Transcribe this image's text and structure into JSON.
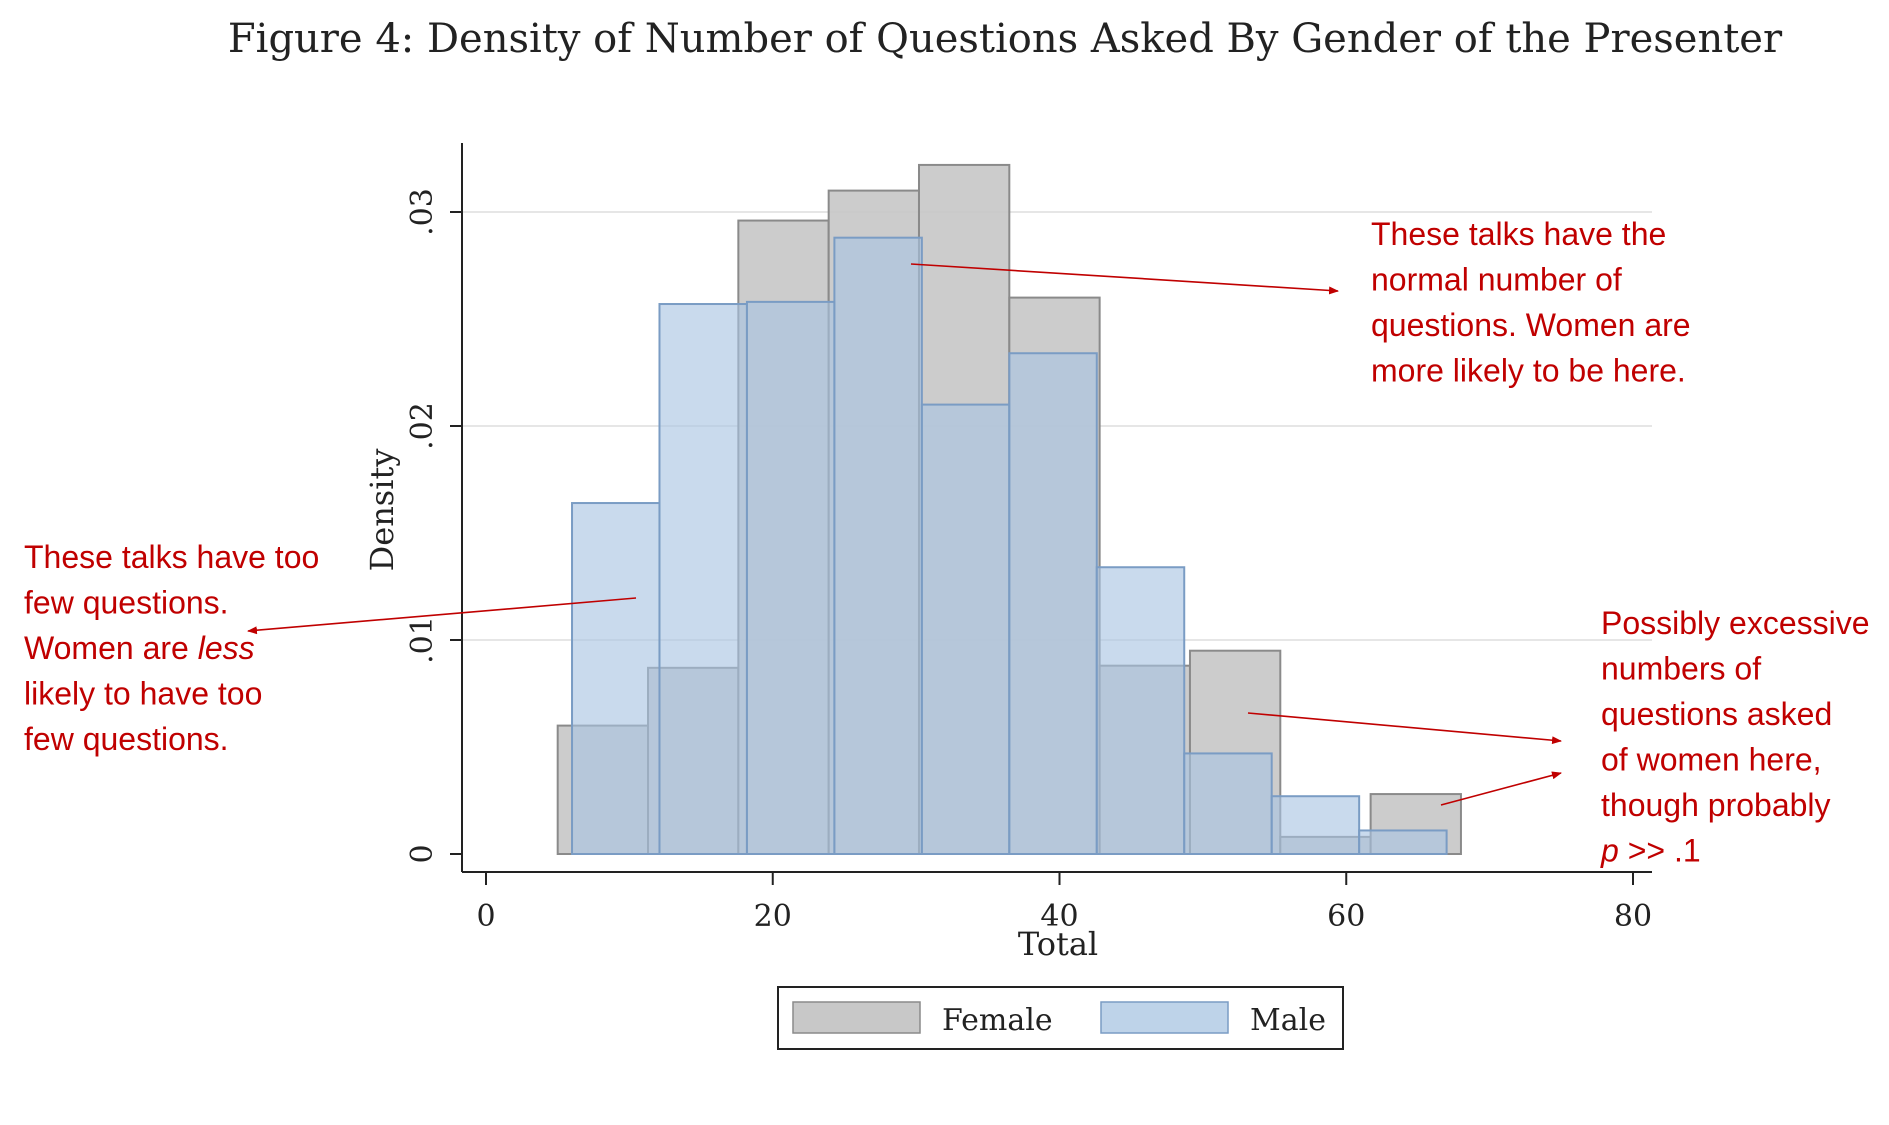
{
  "figure_title": "Figure 4: Density of Number of Questions Asked By Gender of the Presenter",
  "colors": {
    "female_fill": "#c8c8c8",
    "female_stroke": "#8a8a8a",
    "male_fill": "#a8c4e2",
    "male_stroke": "#7a9cc4",
    "annotation": "#c00000",
    "grid": "#e6e6e6",
    "axis": "#222222"
  },
  "chart_data": {
    "type": "bar",
    "subtype": "overlaid-histogram",
    "xlabel": "Total",
    "ylabel": "Density",
    "xlim": [
      0,
      80
    ],
    "ylim": [
      0,
      0.033
    ],
    "x_ticks": [
      0,
      20,
      40,
      60,
      80
    ],
    "x_tick_labels": [
      "0",
      "20",
      "40",
      "60",
      "80"
    ],
    "y_ticks": [
      0,
      0.01,
      0.02,
      0.03
    ],
    "y_tick_labels": [
      "0",
      ".01",
      ".02",
      ".03"
    ],
    "grid": true,
    "legend": {
      "placement": "bottom",
      "entries": [
        "Female",
        "Male"
      ]
    },
    "series": [
      {
        "name": "Female",
        "bins": [
          {
            "x0": 5.0,
            "x1": 11.3,
            "value": 0.006
          },
          {
            "x0": 11.3,
            "x1": 17.6,
            "value": 0.0087
          },
          {
            "x0": 17.6,
            "x1": 23.9,
            "value": 0.0296
          },
          {
            "x0": 23.9,
            "x1": 30.2,
            "value": 0.031
          },
          {
            "x0": 30.2,
            "x1": 36.5,
            "value": 0.0322
          },
          {
            "x0": 36.5,
            "x1": 42.8,
            "value": 0.026
          },
          {
            "x0": 42.8,
            "x1": 49.1,
            "value": 0.0088
          },
          {
            "x0": 49.1,
            "x1": 55.4,
            "value": 0.0095
          },
          {
            "x0": 55.4,
            "x1": 61.7,
            "value": 0.0008
          },
          {
            "x0": 61.7,
            "x1": 68.0,
            "value": 0.0028
          }
        ]
      },
      {
        "name": "Male",
        "bins": [
          {
            "x0": 6.0,
            "x1": 12.1,
            "value": 0.0164
          },
          {
            "x0": 12.1,
            "x1": 18.2,
            "value": 0.0257
          },
          {
            "x0": 18.2,
            "x1": 24.3,
            "value": 0.0258
          },
          {
            "x0": 24.3,
            "x1": 30.4,
            "value": 0.0288
          },
          {
            "x0": 30.4,
            "x1": 36.5,
            "value": 0.021
          },
          {
            "x0": 36.5,
            "x1": 42.6,
            "value": 0.0234
          },
          {
            "x0": 42.6,
            "x1": 48.7,
            "value": 0.0134
          },
          {
            "x0": 48.7,
            "x1": 54.8,
            "value": 0.0047
          },
          {
            "x0": 54.8,
            "x1": 60.9,
            "value": 0.0027
          },
          {
            "x0": 60.9,
            "x1": 67.0,
            "value": 0.0011
          }
        ]
      }
    ],
    "annotations": [
      {
        "lines": [
          "These talks have too",
          "few questions.",
          "Women are |less|",
          "likely to have too",
          "few questions."
        ]
      },
      {
        "lines": [
          "These talks have the",
          "normal number of",
          "questions. Women are",
          "more likely to be here."
        ]
      },
      {
        "lines": [
          "Possibly excessive",
          "numbers of",
          "questions asked",
          "of women here,",
          "though probably",
          "|p| >> .1"
        ]
      }
    ]
  }
}
